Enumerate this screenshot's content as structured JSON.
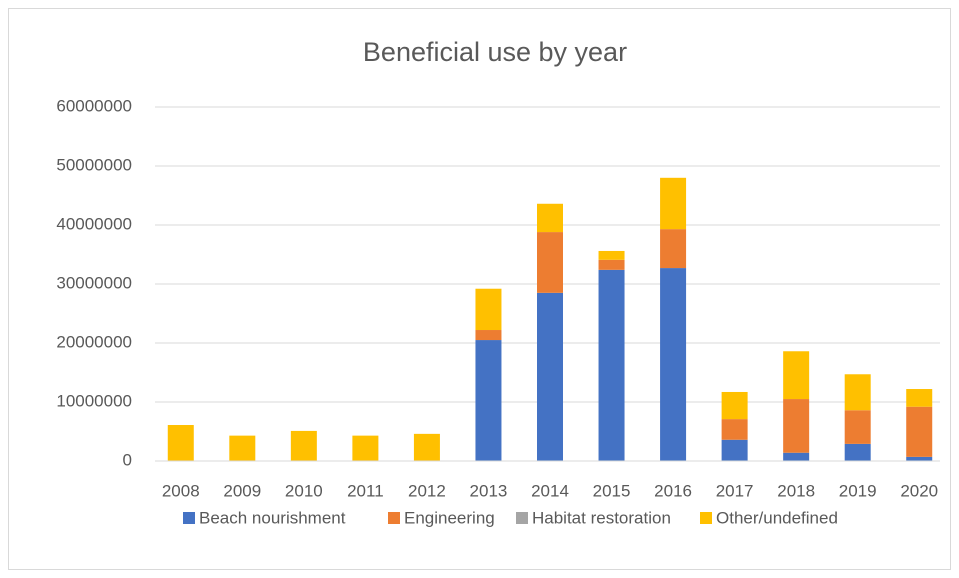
{
  "chart_data": {
    "type": "stacked_bar",
    "title": "Beneficial use by year",
    "categories": [
      "2008",
      "2009",
      "2010",
      "2011",
      "2012",
      "2013",
      "2014",
      "2015",
      "2016",
      "2017",
      "2018",
      "2019",
      "2020"
    ],
    "series": [
      {
        "name": "Beach nourishment",
        "color": "#4472c4",
        "values": [
          0,
          0,
          0,
          0,
          0,
          20500000,
          28500000,
          32400000,
          32700000,
          3600000,
          1400000,
          2900000,
          700000
        ]
      },
      {
        "name": "Engineering",
        "color": "#ed7d31",
        "values": [
          0,
          0,
          0,
          0,
          0,
          1700000,
          10300000,
          1700000,
          6600000,
          3500000,
          9100000,
          5700000,
          8500000
        ]
      },
      {
        "name": "Habitat restoration",
        "color": "#a5a5a5",
        "values": [
          0,
          0,
          0,
          0,
          0,
          0,
          0,
          0,
          0,
          0,
          0,
          0,
          0
        ]
      },
      {
        "name": "Other/undefined",
        "color": "#ffc000",
        "values": [
          6100000,
          4300000,
          5100000,
          4300000,
          4600000,
          7000000,
          4800000,
          1500000,
          8700000,
          4600000,
          8100000,
          6100000,
          3000000
        ]
      }
    ],
    "ylim": [
      0,
      60000000
    ],
    "yticks": [
      0,
      10000000,
      20000000,
      30000000,
      40000000,
      50000000,
      60000000
    ],
    "grid": true
  }
}
